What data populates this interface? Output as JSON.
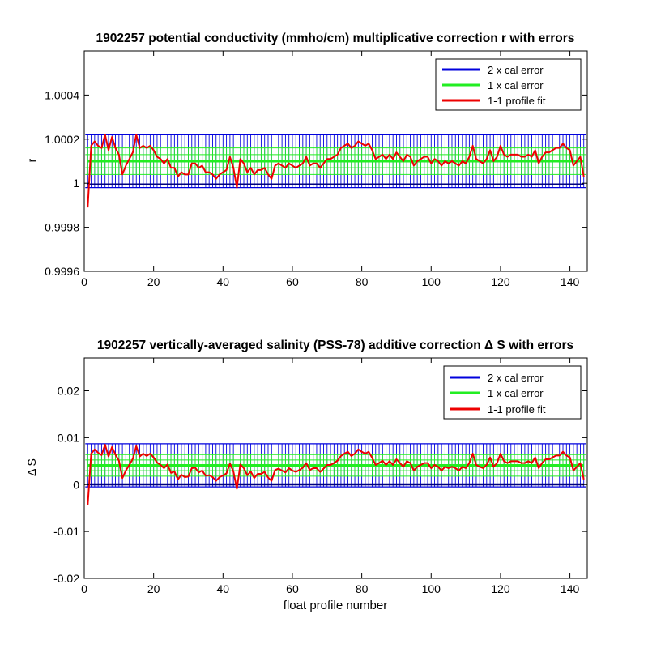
{
  "chart_data": [
    {
      "type": "line",
      "title": "1902257 potential conductivity (mmho/cm) multiplicative correction r with errors",
      "xlabel": "",
      "ylabel": "r",
      "xlim": [
        0,
        145
      ],
      "ylim": [
        0.9996,
        1.0006
      ],
      "xticks": [
        0,
        20,
        40,
        60,
        80,
        100,
        120,
        140
      ],
      "xtick_labels": [
        "0",
        "20",
        "40",
        "60",
        "80",
        "100",
        "120",
        "140"
      ],
      "yticks": [
        0.9996,
        0.9998,
        1.0,
        1.0002,
        1.0004
      ],
      "ytick_labels": [
        "0.9996",
        "0.9998",
        "1",
        "1.0002",
        "1.0004"
      ],
      "grid": false,
      "legend_position": "top-right",
      "legend": [
        "2 x cal error",
        "1 x cal error",
        "1-1 profile fit"
      ],
      "colors": {
        "two_cal": "#0000dd",
        "one_cal": "#22ee22",
        "fit": "#ee0000",
        "band_center": "#00aa00",
        "two_cal_center": "#000080"
      },
      "error_bands": {
        "center": 1.0001,
        "one_cal_halfwidth": 6e-05,
        "two_cal_halfwidth": 0.00012
      },
      "series": [
        {
          "name": "1-1 profile fit",
          "x": [
            1,
            2,
            3,
            4,
            5,
            6,
            7,
            8,
            9,
            10,
            11,
            12,
            13,
            14,
            15,
            16,
            17,
            18,
            19,
            20,
            21,
            22,
            23,
            24,
            25,
            26,
            27,
            28,
            29,
            30,
            31,
            32,
            33,
            34,
            35,
            36,
            37,
            38,
            39,
            40,
            41,
            42,
            43,
            44,
            45,
            46,
            47,
            48,
            49,
            50,
            51,
            52,
            53,
            54,
            55,
            56,
            57,
            58,
            59,
            60,
            61,
            62,
            63,
            64,
            65,
            66,
            67,
            68,
            69,
            70,
            71,
            72,
            73,
            74,
            75,
            76,
            77,
            78,
            79,
            80,
            81,
            82,
            83,
            84,
            85,
            86,
            87,
            88,
            89,
            90,
            91,
            92,
            93,
            94,
            95,
            96,
            97,
            98,
            99,
            100,
            101,
            102,
            103,
            104,
            105,
            106,
            107,
            108,
            109,
            110,
            111,
            112,
            113,
            114,
            115,
            116,
            117,
            118,
            119,
            120,
            121,
            122,
            123,
            124,
            125,
            126,
            127,
            128,
            129,
            130,
            131,
            132,
            133,
            134,
            135,
            136,
            137,
            138,
            139,
            140,
            141,
            142,
            143,
            144
          ],
          "values": [
            0.99989,
            1.00017,
            1.00019,
            1.00017,
            1.00016,
            1.00022,
            1.00015,
            1.00021,
            1.00016,
            1.00013,
            1.00004,
            1.00008,
            1.00011,
            1.00014,
            1.00022,
            1.00016,
            1.00017,
            1.00016,
            1.00017,
            1.00015,
            1.00012,
            1.00011,
            1.00009,
            1.00011,
            1.00007,
            1.00007,
            1.00003,
            1.00005,
            1.00004,
            1.00004,
            1.00009,
            1.00009,
            1.00007,
            1.00008,
            1.00005,
            1.00005,
            1.00004,
            1.00002,
            1.00004,
            1.00005,
            1.00006,
            1.00012,
            1.00007,
            0.99998,
            1.00011,
            1.00009,
            1.00005,
            1.00007,
            1.00004,
            1.00006,
            1.00006,
            1.00007,
            1.00004,
            1.00002,
            1.00008,
            1.00009,
            1.00008,
            1.00007,
            1.00009,
            1.00008,
            1.00007,
            1.00008,
            1.00009,
            1.00012,
            1.00008,
            1.00009,
            1.00009,
            1.00007,
            1.00009,
            1.00011,
            1.00011,
            1.00012,
            1.00013,
            1.00016,
            1.00017,
            1.00018,
            1.00016,
            1.00017,
            1.00019,
            1.00018,
            1.00017,
            1.00018,
            1.00015,
            1.00011,
            1.00012,
            1.00013,
            1.00011,
            1.00013,
            1.00011,
            1.00014,
            1.00012,
            1.0001,
            1.00013,
            1.00012,
            1.00008,
            1.0001,
            1.00011,
            1.00012,
            1.00012,
            1.00009,
            1.00011,
            1.0001,
            1.00008,
            1.0001,
            1.00009,
            1.0001,
            1.00009,
            1.00008,
            1.0001,
            1.00009,
            1.00012,
            1.00017,
            1.00011,
            1.0001,
            1.00009,
            1.00011,
            1.00015,
            1.0001,
            1.00012,
            1.00017,
            1.00013,
            1.00012,
            1.00013,
            1.00013,
            1.00013,
            1.00012,
            1.00012,
            1.00013,
            1.00012,
            1.00015,
            1.00009,
            1.00012,
            1.00014,
            1.00014,
            1.00015,
            1.00016,
            1.00016,
            1.00018,
            1.00016,
            1.00015,
            1.00008,
            1.0001,
            1.00012,
            1.00003
          ]
        }
      ]
    },
    {
      "type": "line",
      "title": "1902257 vertically-averaged salinity (PSS-78) additive correction Δ S with errors",
      "xlabel": "float profile number",
      "ylabel": "Δ S",
      "xlim": [
        0,
        145
      ],
      "ylim": [
        -0.02,
        0.027
      ],
      "xticks": [
        0,
        20,
        40,
        60,
        80,
        100,
        120,
        140
      ],
      "xtick_labels": [
        "0",
        "20",
        "40",
        "60",
        "80",
        "100",
        "120",
        "140"
      ],
      "yticks": [
        -0.02,
        -0.01,
        0,
        0.01,
        0.02
      ],
      "ytick_labels": [
        "-0.02",
        "-0.01",
        "0",
        "0.01",
        "0.02"
      ],
      "grid": false,
      "legend_position": "top-right",
      "legend": [
        "2 x cal error",
        "1 x cal error",
        "1-1 profile fit"
      ],
      "colors": {
        "two_cal": "#0000dd",
        "one_cal": "#22ee22",
        "fit": "#ee0000",
        "band_center": "#00aa00",
        "two_cal_center": "#000080"
      },
      "error_bands": {
        "center": 0.0041,
        "one_cal_halfwidth": 0.0023,
        "two_cal_halfwidth": 0.0046
      },
      "series": [
        {
          "name": "1-1 profile fit",
          "x": [
            1,
            2,
            3,
            4,
            5,
            6,
            7,
            8,
            9,
            10,
            11,
            12,
            13,
            14,
            15,
            16,
            17,
            18,
            19,
            20,
            21,
            22,
            23,
            24,
            25,
            26,
            27,
            28,
            29,
            30,
            31,
            32,
            33,
            34,
            35,
            36,
            37,
            38,
            39,
            40,
            41,
            42,
            43,
            44,
            45,
            46,
            47,
            48,
            49,
            50,
            51,
            52,
            53,
            54,
            55,
            56,
            57,
            58,
            59,
            60,
            61,
            62,
            63,
            64,
            65,
            66,
            67,
            68,
            69,
            70,
            71,
            72,
            73,
            74,
            75,
            76,
            77,
            78,
            79,
            80,
            81,
            82,
            83,
            84,
            85,
            86,
            87,
            88,
            89,
            90,
            91,
            92,
            93,
            94,
            95,
            96,
            97,
            98,
            99,
            100,
            101,
            102,
            103,
            104,
            105,
            106,
            107,
            108,
            109,
            110,
            111,
            112,
            113,
            114,
            115,
            116,
            117,
            118,
            119,
            120,
            121,
            122,
            123,
            124,
            125,
            126,
            127,
            128,
            129,
            130,
            131,
            132,
            133,
            134,
            135,
            136,
            137,
            138,
            139,
            140,
            141,
            142,
            143,
            144
          ],
          "values": [
            -0.0044,
            0.0066,
            0.0075,
            0.0068,
            0.0063,
            0.0085,
            0.006,
            0.008,
            0.0064,
            0.0051,
            0.0014,
            0.003,
            0.0042,
            0.0055,
            0.0082,
            0.006,
            0.0066,
            0.0061,
            0.0066,
            0.0058,
            0.0047,
            0.0042,
            0.0035,
            0.0043,
            0.0025,
            0.0028,
            0.0011,
            0.0021,
            0.0016,
            0.0017,
            0.0035,
            0.0036,
            0.0026,
            0.003,
            0.0019,
            0.002,
            0.0016,
            0.0008,
            0.0016,
            0.0019,
            0.0024,
            0.0045,
            0.0028,
            -0.0009,
            0.0043,
            0.0035,
            0.002,
            0.0028,
            0.0014,
            0.0023,
            0.0023,
            0.0027,
            0.0015,
            0.0008,
            0.0031,
            0.0034,
            0.003,
            0.0026,
            0.0035,
            0.003,
            0.0027,
            0.0031,
            0.0036,
            0.0046,
            0.0031,
            0.0035,
            0.0035,
            0.0027,
            0.0034,
            0.0042,
            0.0042,
            0.0046,
            0.0051,
            0.0061,
            0.0066,
            0.007,
            0.0061,
            0.0066,
            0.0075,
            0.007,
            0.0066,
            0.007,
            0.0057,
            0.0042,
            0.0046,
            0.0051,
            0.0042,
            0.005,
            0.0042,
            0.0054,
            0.0046,
            0.0038,
            0.005,
            0.0046,
            0.003,
            0.0038,
            0.0042,
            0.0046,
            0.0046,
            0.0035,
            0.0042,
            0.0038,
            0.003,
            0.0038,
            0.0035,
            0.0038,
            0.0035,
            0.003,
            0.0038,
            0.0035,
            0.0046,
            0.0066,
            0.0042,
            0.0038,
            0.0035,
            0.0042,
            0.0058,
            0.0038,
            0.0046,
            0.0066,
            0.005,
            0.0046,
            0.005,
            0.005,
            0.005,
            0.0046,
            0.0046,
            0.005,
            0.0046,
            0.0058,
            0.0035,
            0.0046,
            0.0054,
            0.0054,
            0.0058,
            0.0062,
            0.0062,
            0.007,
            0.0062,
            0.0058,
            0.003,
            0.0038,
            0.0046,
            0.0011
          ]
        }
      ]
    }
  ]
}
